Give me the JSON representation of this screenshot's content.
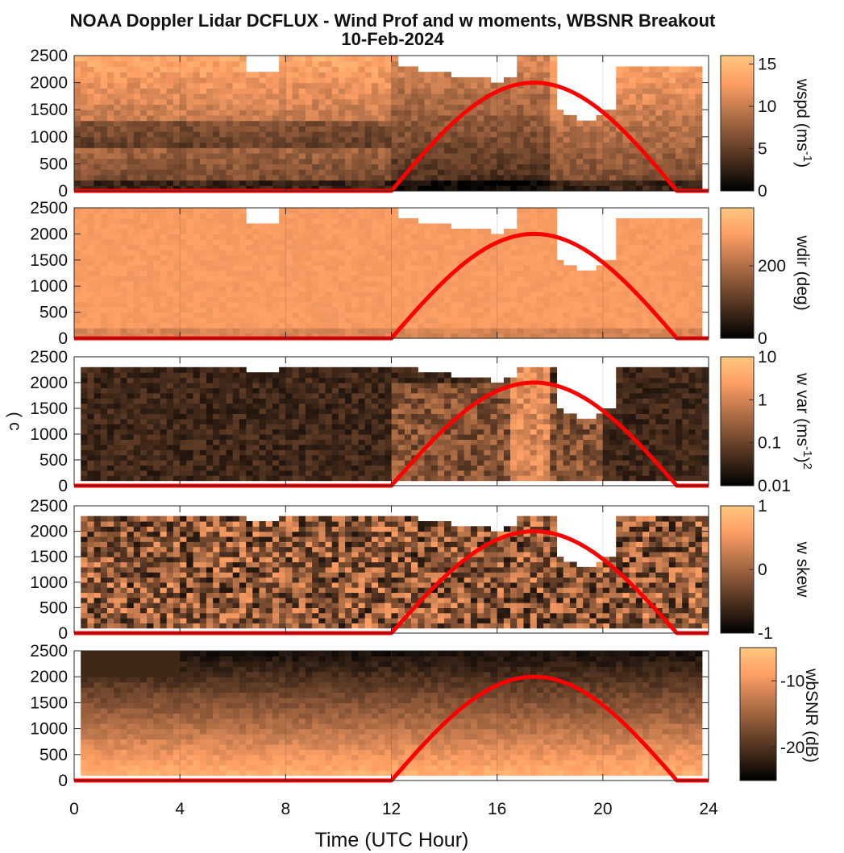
{
  "figure": {
    "title_line1": "NOAA Doppler Lidar DCFLUX - Wind Prof and w moments, WBSNR Breakout",
    "title_line2": "10-Feb-2024",
    "xlabel": "Time (UTC Hour)",
    "colors": {
      "copper_dark": "#000000",
      "copper_light": "#ffc77f",
      "overlay_line": "#ff0000"
    }
  },
  "chart_data": [
    {
      "type": "heatmap",
      "name": "wspd",
      "colorbar_label": "wspd (ms-1)",
      "colorbar_label_main": "wspd (ms",
      "colorbar_label_sup": "-1",
      "colorbar_label_end": ")",
      "colorbar_range": [
        0,
        16
      ],
      "colorbar_ticks": [
        "0",
        "5",
        "10",
        "15"
      ],
      "colorbar_tick_values": [
        0,
        5,
        10,
        15
      ],
      "colorbar_scale": "linear",
      "x_range": [
        0,
        24
      ],
      "y_range": [
        0,
        2500
      ],
      "y_ticks": [
        "0",
        "500",
        "1000",
        "1500",
        "2000",
        "2500"
      ],
      "y_tick_values": [
        0,
        500,
        1000,
        1500,
        2000,
        2500
      ],
      "data_description": "time-height wind speed, 0-14 m/s, calm near surface, stronger aloft",
      "overlay_line": "solar elevation curve: 0 until 12 h, peaks at 2000 near 17.4 h, back to 0 at 22.8 h"
    },
    {
      "type": "heatmap",
      "name": "wdir",
      "colorbar_label": "wdir (deg)",
      "colorbar_range": [
        0,
        360
      ],
      "colorbar_ticks": [
        "0",
        "200"
      ],
      "colorbar_tick_values": [
        0,
        200
      ],
      "colorbar_scale": "linear",
      "x_range": [
        0,
        24
      ],
      "y_range": [
        0,
        2500
      ],
      "y_ticks": [
        "0",
        "500",
        "1000",
        "1500",
        "2000",
        "2500"
      ],
      "y_tick_values": [
        0,
        500,
        1000,
        1500,
        2000,
        2500
      ],
      "data_description": "time-height wind direction, mostly ~260-300 deg"
    },
    {
      "type": "heatmap",
      "name": "w var",
      "colorbar_label": "w var (ms-1)2",
      "colorbar_label_main": "w var (ms",
      "colorbar_label_sup": "-1",
      "colorbar_label_end": ")",
      "colorbar_label_sup2": "2",
      "colorbar_range": [
        0.01,
        10
      ],
      "colorbar_ticks": [
        "0.01",
        "0.1",
        "1",
        "10"
      ],
      "colorbar_tick_values": [
        0.01,
        0.1,
        1,
        10
      ],
      "colorbar_scale": "log",
      "x_range": [
        0,
        24
      ],
      "y_range": [
        0,
        2500
      ],
      "y_ticks": [
        "0",
        "500",
        "1000",
        "1500",
        "2000",
        "2500"
      ],
      "y_tick_values": [
        0,
        500,
        1000,
        1500,
        2000,
        2500
      ],
      "data_description": "vertical velocity variance, low at night, higher during daytime convection",
      "partial_left_label": "( c"
    },
    {
      "type": "heatmap",
      "name": "w skew",
      "colorbar_label": "w skew",
      "colorbar_range": [
        -1,
        1
      ],
      "colorbar_ticks": [
        "-1",
        "0",
        "1"
      ],
      "colorbar_tick_values": [
        -1,
        0,
        1
      ],
      "colorbar_scale": "linear",
      "x_range": [
        0,
        24
      ],
      "y_range": [
        0,
        2500
      ],
      "y_ticks": [
        "0",
        "500",
        "1000",
        "1500",
        "2000",
        "2500"
      ],
      "y_tick_values": [
        0,
        500,
        1000,
        1500,
        2000,
        2500
      ],
      "data_description": "vertical velocity skewness, noisy values between -1 and 1"
    },
    {
      "type": "heatmap",
      "name": "wbSNR",
      "colorbar_label": "wbSNR (dB)",
      "colorbar_range": [
        -25,
        -5
      ],
      "colorbar_ticks": [
        "-20",
        "-10"
      ],
      "colorbar_tick_values": [
        -20,
        -10
      ],
      "colorbar_scale": "linear",
      "x_range": [
        0,
        24
      ],
      "y_range": [
        0,
        2500
      ],
      "y_ticks": [
        "0",
        "500",
        "1000",
        "1500",
        "2000",
        "2500"
      ],
      "y_tick_values": [
        0,
        500,
        1000,
        1500,
        2000,
        2500
      ],
      "x_ticks": [
        "0",
        "4",
        "8",
        "12",
        "16",
        "20",
        "24"
      ],
      "x_tick_values": [
        0,
        4,
        8,
        12,
        16,
        20,
        24
      ],
      "data_description": "wideband SNR, high near surface, decreasing with height"
    }
  ]
}
